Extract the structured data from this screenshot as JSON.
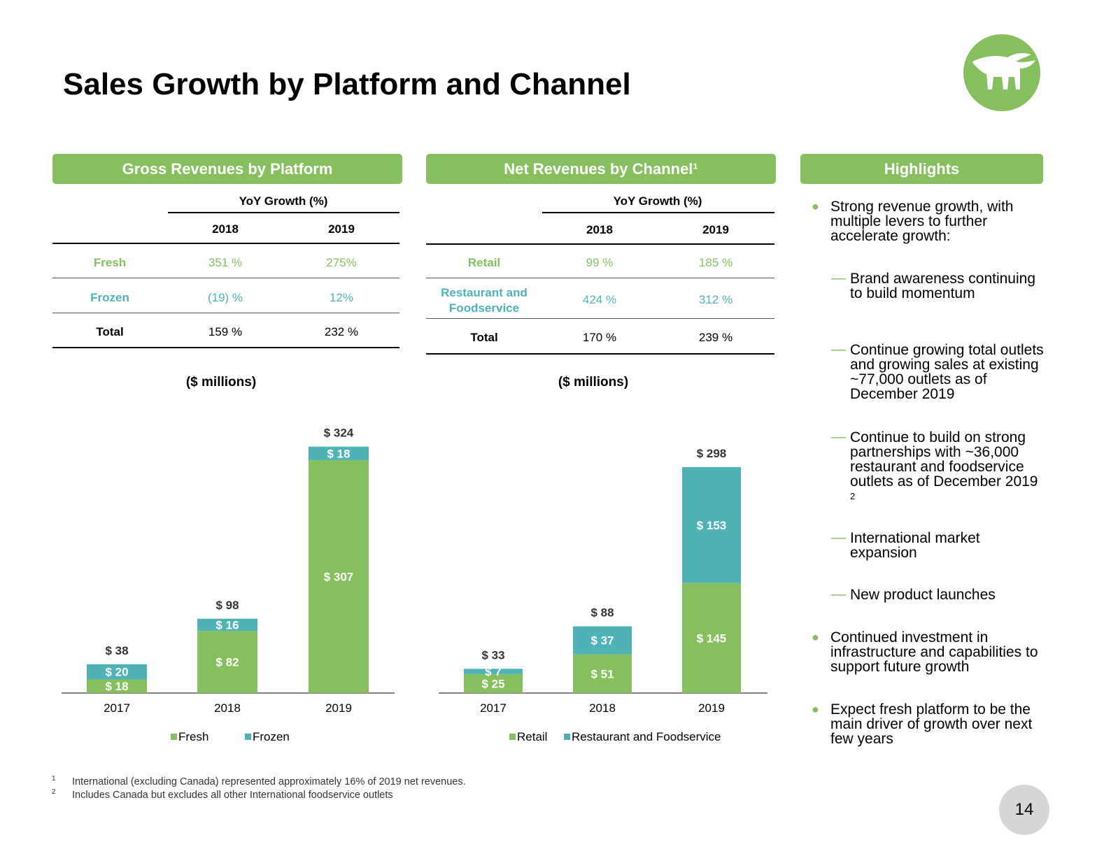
{
  "title": "Sales Growth by Platform and Channel",
  "colors": {
    "green": "#86bf5e",
    "teal": "#4fb2b7"
  },
  "logo_icon": "bull-icon",
  "platform": {
    "header": "Gross Revenues by Platform",
    "growth_label": "YoY Growth (%)",
    "years": [
      "2018",
      "2019"
    ],
    "rows": [
      {
        "label": "Fresh",
        "v2018": "351 %",
        "v2019": "275%"
      },
      {
        "label": "Frozen",
        "v2018": "(19) %",
        "v2019": "12%"
      },
      {
        "label": "Total",
        "v2018": "159 %",
        "v2019": "232 %"
      }
    ],
    "units": "($ millions)"
  },
  "channel": {
    "header": "Net Revenues by Channel¹",
    "growth_label": "YoY Growth (%)",
    "years": [
      "2018",
      "2019"
    ],
    "rows": [
      {
        "label": "Retail",
        "v2018": "99 %",
        "v2019": "185 %"
      },
      {
        "label": "Restaurant and Foodservice",
        "label_line1": "Restaurant and",
        "label_line2": "Foodservice",
        "v2018": "424 %",
        "v2019": "312 %"
      },
      {
        "label": "Total",
        "v2018": "170 %",
        "v2019": "239 %"
      }
    ],
    "units": "($ millions)"
  },
  "chart_data": [
    {
      "type": "bar",
      "stacked": true,
      "title": "Gross Revenues by Platform ($ millions)",
      "categories": [
        "2017",
        "2018",
        "2019"
      ],
      "series": [
        {
          "name": "Fresh",
          "color": "#86bf5e",
          "values": [
            18,
            82,
            307
          ],
          "labels": [
            "$ 18",
            "$ 82",
            "$ 307"
          ]
        },
        {
          "name": "Frozen",
          "color": "#4fb2b7",
          "values": [
            20,
            16,
            18
          ],
          "labels": [
            "$ 20",
            "$ 16",
            "$ 18"
          ]
        }
      ],
      "totals": [
        38,
        98,
        324
      ],
      "total_labels": [
        "$ 38",
        "$ 98",
        "$ 324"
      ],
      "legend": [
        "Fresh",
        "Frozen"
      ],
      "ylim": [
        0,
        340
      ]
    },
    {
      "type": "bar",
      "stacked": true,
      "title": "Net Revenues by Channel ($ millions)",
      "categories": [
        "2017",
        "2018",
        "2019"
      ],
      "series": [
        {
          "name": "Retail",
          "color": "#86bf5e",
          "values": [
            25,
            51,
            145
          ],
          "labels": [
            "$ 25",
            "$ 51",
            "$ 145"
          ]
        },
        {
          "name": "Restaurant and Foodservice",
          "color": "#4fb2b7",
          "values": [
            7,
            37,
            153
          ],
          "labels": [
            "$ 7",
            "$ 37",
            "$ 153"
          ]
        }
      ],
      "totals": [
        33,
        88,
        298
      ],
      "total_labels": [
        "$ 33",
        "$ 88",
        "$ 298"
      ],
      "legend": [
        "Retail",
        "Restaurant and Foodservice"
      ],
      "ylim": [
        0,
        340
      ]
    }
  ],
  "highlights": {
    "header": "Highlights",
    "bullet1": "Strong revenue growth, with multiple levers to further accelerate growth:",
    "sub": [
      "Brand awareness continuing to build momentum",
      "Continue growing total outlets and growing sales at existing ~77,000 outlets as of December 2019",
      "Continue to build on strong partnerships with ~36,000 restaurant and foodservice outlets as of December 2019",
      "International market expansion",
      "New product launches"
    ],
    "sub_superscript": "2",
    "bullet2": "Continued investment in infrastructure and capabilities to support future growth",
    "bullet3": "Expect fresh platform to be the main driver of growth over next few years"
  },
  "footnotes": [
    {
      "mark": "1",
      "text": "International (excluding Canada) represented approximately 16% of 2019 net revenues."
    },
    {
      "mark": "2",
      "text": "Includes Canada but excludes all other International foodservice outlets"
    }
  ],
  "page_number": "14"
}
